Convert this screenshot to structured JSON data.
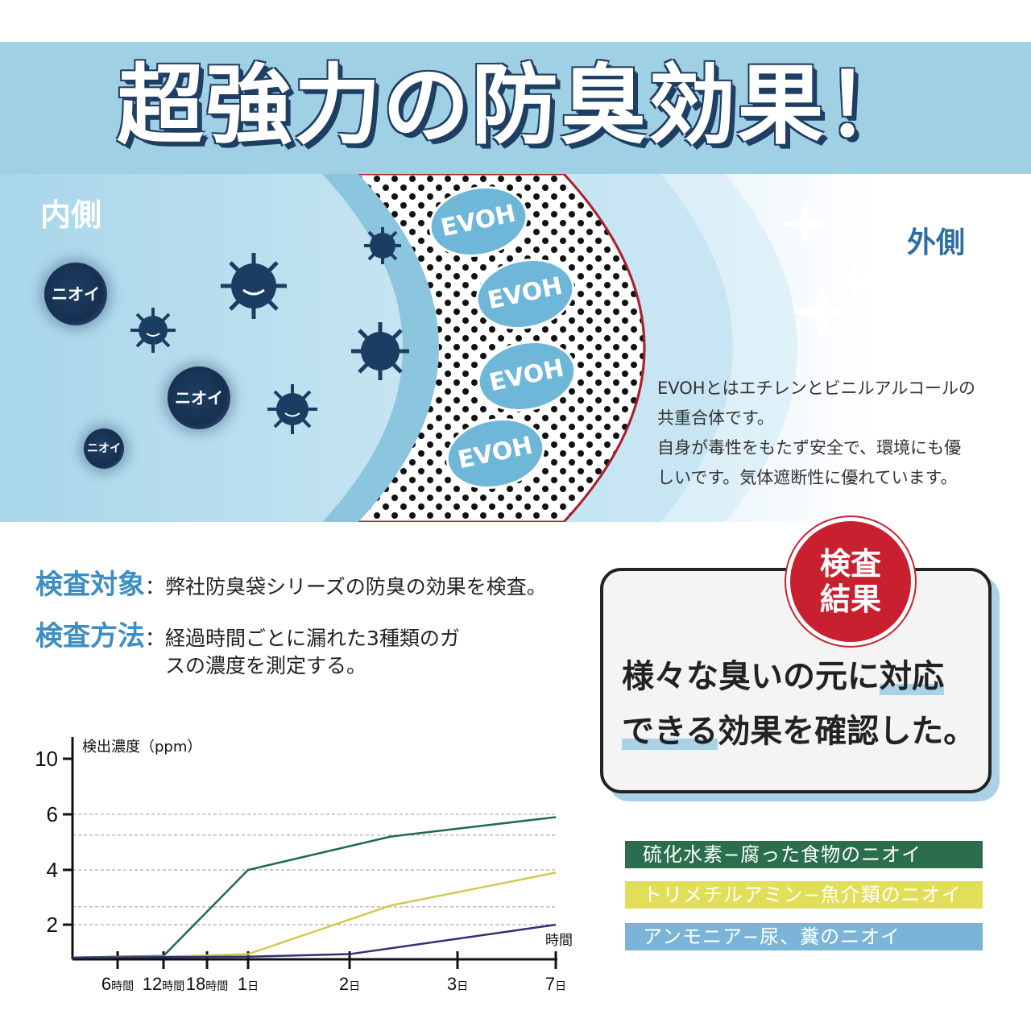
{
  "banner": {
    "title": "超強力の防臭効果！"
  },
  "illustration": {
    "inside_label": "内側",
    "outside_label": "外側",
    "smell_labels": [
      "ニオイ",
      "ニオイ",
      "ニオイ"
    ],
    "layer_labels": [
      "EVOH",
      "EVOH",
      "EVOH",
      "EVOH"
    ],
    "description": [
      "EVOHとはエチレンとビニルアルコールの",
      "共重合体です。",
      "自身が毒性をもたず安全で、環境にも優",
      "しいです。気体遮断性に優れています。"
    ]
  },
  "test": {
    "target_label": "検査対象",
    "target_text": "：弊社防臭袋シリーズの防臭の効果を検査。",
    "method_label": "検査方法",
    "method_text_1": "：経過時間ごとに漏れた3種類のガ",
    "method_text_2": "スの濃度を測定する。"
  },
  "result": {
    "badge_line1": "検査",
    "badge_line2": "結果",
    "text_1a": "様々な臭いの元に",
    "text_1b": "対応",
    "text_2a": "できる",
    "text_2b": "効果を確認した。"
  },
  "legend": [
    {
      "label": "硫化水素−腐った食物のニオイ",
      "color": "#2b6e4e"
    },
    {
      "label": "トリメチルアミン−魚介類のニオイ",
      "color": "#e1df5a"
    },
    {
      "label": "アンモニア−尿、糞のニオイ",
      "color": "#7ab4d6"
    }
  ],
  "chart_data": {
    "type": "line",
    "ylabel": "検出濃度（ppm）",
    "xlabel": "時間",
    "y_ticks": [
      2,
      4,
      6,
      10
    ],
    "ylim": [
      0,
      10
    ],
    "x_categories": [
      {
        "num": "6",
        "unit": "時間"
      },
      {
        "num": "12",
        "unit": "時間"
      },
      {
        "num": "18",
        "unit": "時間"
      },
      {
        "num": "1",
        "unit": "日"
      },
      {
        "num": "2",
        "unit": "日"
      },
      {
        "num": "3",
        "unit": "日"
      },
      {
        "num": "7",
        "unit": "日"
      }
    ],
    "grid": "dashed",
    "series": [
      {
        "name": "硫化水素",
        "color": "#1f6b4d",
        "x": [
          "start",
          "12時間",
          "1日",
          "2.4日",
          "7日"
        ],
        "values": [
          0.1,
          0.2,
          4.0,
          5.2,
          5.9
        ]
      },
      {
        "name": "トリメチルアミン",
        "color": "#d4c94a",
        "x": [
          "start",
          "12時間",
          "1日",
          "2.4日",
          "7日"
        ],
        "values": [
          0.1,
          0.15,
          0.3,
          2.7,
          3.9
        ]
      },
      {
        "name": "アンモニア",
        "color": "#2f3170",
        "x": [
          "start",
          "1日",
          "2日",
          "7日"
        ],
        "values": [
          0.1,
          0.15,
          0.3,
          2.0
        ]
      }
    ]
  }
}
